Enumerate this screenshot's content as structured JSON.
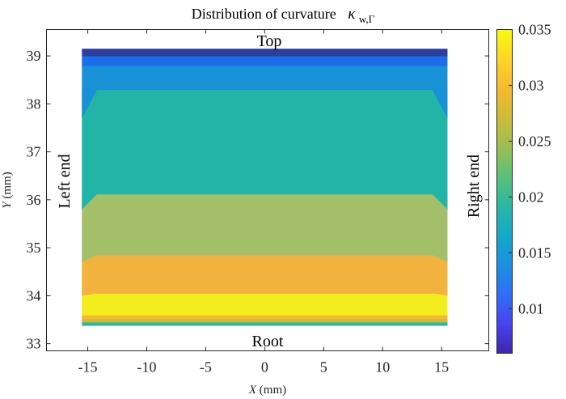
{
  "chart_data": {
    "type": "contour",
    "title": "Distribution of curvature",
    "title_symbol": "κ",
    "title_subscript": "w,Γ",
    "xlabel_var": "X",
    "xlabel_unit": " (mm)",
    "ylabel_var": "Y",
    "ylabel_unit": " (mm)",
    "xlim": [
      -18.5,
      19.0
    ],
    "ylim": [
      32.85,
      39.55
    ],
    "x_ticks": [
      -15,
      -10,
      -5,
      0,
      5,
      10,
      15
    ],
    "y_ticks": [
      33,
      34,
      35,
      36,
      37,
      38,
      39
    ],
    "grid": false,
    "colorbar": {
      "range": [
        0.006,
        0.035
      ],
      "ticks": [
        0.01,
        0.015,
        0.02,
        0.025,
        0.03,
        0.035
      ],
      "colormap": [
        "#3e26a8",
        "#4743f0",
        "#2f6ff7",
        "#1c90e1",
        "#13a9c9",
        "#2bb7a4",
        "#59c079",
        "#9abf53",
        "#cdbb3a",
        "#f5ba2f",
        "#fdd528",
        "#f9fb0e"
      ]
    },
    "annotations": {
      "top": "Top",
      "root": "Root",
      "left": "Left end",
      "right": "Right end"
    },
    "bands": [
      {
        "y0": 33.38,
        "y1": 33.45,
        "value": 0.021,
        "color": "#2bb7a4"
      },
      {
        "y0": 33.45,
        "y1": 33.52,
        "value": 0.027,
        "color": "#cdbb3a"
      },
      {
        "y0": 33.52,
        "y1": 33.6,
        "value": 0.031,
        "color": "#f5ba2f"
      },
      {
        "y0": 33.6,
        "y1": 34.05,
        "value": 0.034,
        "color": "#f4ed1d"
      },
      {
        "y0": 34.05,
        "y1": 34.85,
        "value": 0.03,
        "color": "#f2b23e"
      },
      {
        "y0": 34.85,
        "y1": 36.12,
        "value": 0.026,
        "color": "#a4bf6a"
      },
      {
        "y0": 36.12,
        "y1": 38.3,
        "value": 0.021,
        "color": "#23b4a8"
      },
      {
        "y0": 38.3,
        "y1": 38.8,
        "value": 0.015,
        "color": "#1891d6"
      },
      {
        "y0": 38.8,
        "y1": 39.0,
        "value": 0.01,
        "color": "#1c6ee8"
      },
      {
        "y0": 39.0,
        "y1": 39.15,
        "value": 0.007,
        "color": "#2c3e9e"
      }
    ],
    "domain": {
      "xmin": -15.5,
      "xmax": 15.5,
      "ymin": 33.38,
      "ymax": 39.15
    }
  }
}
